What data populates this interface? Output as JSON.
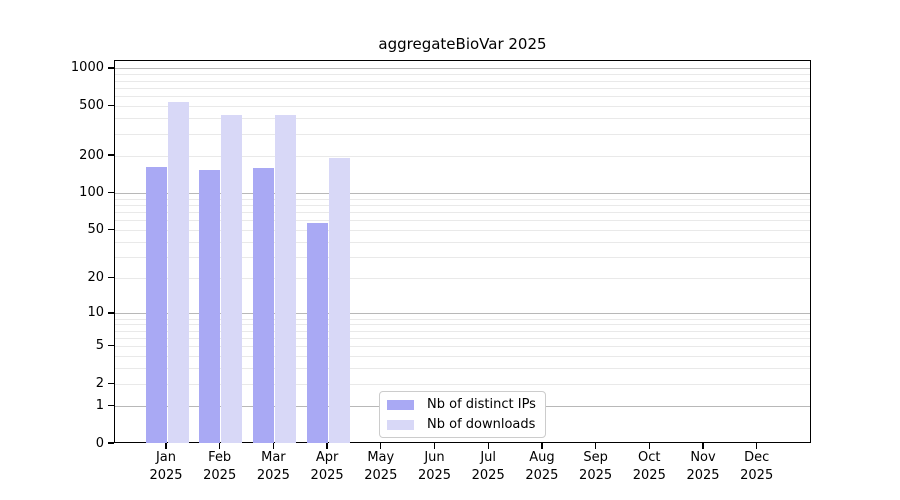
{
  "title": "aggregateBioVar 2025",
  "chart_data": {
    "type": "bar",
    "title": "aggregateBioVar 2025",
    "scale": "log1p",
    "categories": [
      "Jan",
      "Feb",
      "Mar",
      "Apr",
      "May",
      "Jun",
      "Jul",
      "Aug",
      "Sep",
      "Oct",
      "Nov",
      "Dec"
    ],
    "year": "2025",
    "series": [
      {
        "name": "Nb of distinct IPs",
        "color": "#a9a9f4",
        "values": [
          163,
          156,
          160,
          58,
          0,
          0,
          0,
          0,
          0,
          0,
          0,
          0
        ]
      },
      {
        "name": "Nb of downloads",
        "color": "#d8d8f7",
        "values": [
          540,
          428,
          430,
          193,
          0,
          0,
          0,
          0,
          0,
          0,
          0,
          0
        ]
      }
    ],
    "y_ticks": [
      0,
      1,
      2,
      5,
      10,
      20,
      50,
      100,
      200,
      500,
      1000
    ],
    "y_major_gridlines": [
      1,
      10,
      100,
      1000
    ],
    "y_minor_gridlines": [
      2,
      3,
      4,
      5,
      6,
      7,
      8,
      9,
      20,
      30,
      40,
      50,
      60,
      70,
      80,
      90,
      200,
      300,
      400,
      500,
      600,
      700,
      800,
      900
    ],
    "ylim": [
      0,
      1158
    ],
    "xlabel": "",
    "ylabel": "",
    "grid": true,
    "legend_position": "bottom-center-left"
  },
  "style": {
    "grid_major_color": "#b8b8b8",
    "grid_minor_color": "#e9e9e9",
    "axis_color": "#000000",
    "background": "#ffffff",
    "legend_border": "#cccccc"
  }
}
